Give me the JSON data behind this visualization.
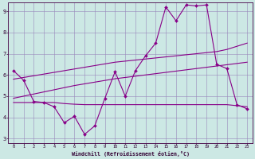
{
  "xlabel": "Windchill (Refroidissement éolien,°C)",
  "bg_color": "#cce8e4",
  "grid_color": "#9988bb",
  "line_color": "#880088",
  "xmin": -0.5,
  "xmax": 23.5,
  "ymin": 2.8,
  "ymax": 9.4,
  "yticks": [
    3,
    4,
    5,
    6,
    7,
    8,
    9
  ],
  "xticks": [
    0,
    1,
    2,
    3,
    4,
    5,
    6,
    7,
    8,
    9,
    10,
    11,
    12,
    13,
    14,
    15,
    16,
    17,
    18,
    19,
    20,
    21,
    22,
    23
  ],
  "line1_x": [
    0,
    1,
    2,
    3,
    4,
    5,
    6,
    7,
    8,
    9,
    10,
    11,
    12,
    13,
    14,
    15,
    16,
    17,
    18,
    19,
    20,
    21,
    22,
    23
  ],
  "line1_y": [
    6.2,
    5.75,
    4.75,
    4.7,
    4.5,
    3.75,
    4.05,
    3.2,
    3.6,
    4.9,
    6.15,
    5.0,
    6.2,
    6.9,
    7.5,
    9.2,
    8.55,
    9.3,
    9.25,
    9.3,
    6.5,
    6.3,
    4.6,
    4.4
  ],
  "line2_x": [
    0,
    1,
    2,
    3,
    4,
    5,
    6,
    7,
    8,
    9,
    10,
    11,
    12,
    13,
    14,
    15,
    16,
    17,
    18,
    19,
    20,
    21,
    22,
    23
  ],
  "line2_y": [
    5.8,
    5.88,
    5.96,
    6.04,
    6.12,
    6.2,
    6.28,
    6.36,
    6.44,
    6.52,
    6.6,
    6.65,
    6.7,
    6.75,
    6.8,
    6.85,
    6.9,
    6.95,
    7.0,
    7.05,
    7.1,
    7.2,
    7.35,
    7.5
  ],
  "line3_x": [
    0,
    1,
    2,
    3,
    4,
    5,
    6,
    7,
    8,
    9,
    10,
    11,
    12,
    13,
    14,
    15,
    16,
    17,
    18,
    19,
    20,
    21,
    22,
    23
  ],
  "line3_y": [
    4.9,
    5.0,
    5.1,
    5.2,
    5.3,
    5.4,
    5.5,
    5.58,
    5.66,
    5.74,
    5.82,
    5.88,
    5.94,
    6.0,
    6.06,
    6.12,
    6.18,
    6.24,
    6.3,
    6.36,
    6.42,
    6.48,
    6.54,
    6.6
  ],
  "line4_x": [
    0,
    2,
    3,
    4,
    5,
    6,
    7,
    8,
    9,
    10,
    11,
    12,
    13,
    14,
    15,
    16,
    17,
    18,
    19,
    20,
    21,
    22,
    23
  ],
  "line4_y": [
    4.7,
    4.7,
    4.7,
    4.7,
    4.65,
    4.62,
    4.6,
    4.6,
    4.6,
    4.6,
    4.6,
    4.6,
    4.6,
    4.6,
    4.6,
    4.6,
    4.6,
    4.6,
    4.6,
    4.6,
    4.6,
    4.55,
    4.5
  ]
}
